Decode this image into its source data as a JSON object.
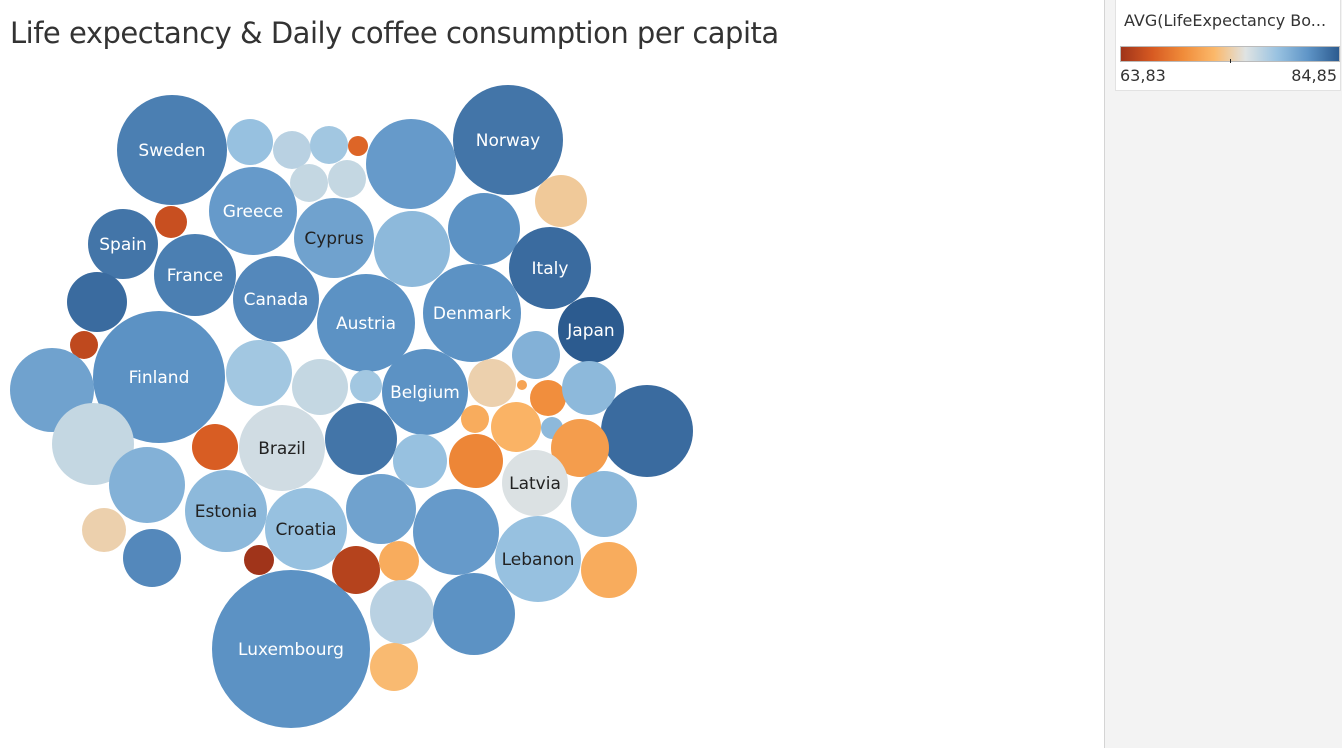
{
  "title": "Life expectancy & Daily coffee consumption per capita",
  "legend": {
    "title": "AVG(LifeExpectancy Bo...",
    "min_label": "63,83",
    "max_label": "84,85",
    "min": 63.83,
    "max": 84.85,
    "colors": [
      "#a0341a",
      "#d75a22",
      "#f08c3a",
      "#fbb86a",
      "#dfe3e3",
      "#9ac3e1",
      "#5f95c7",
      "#2c5b8f"
    ]
  },
  "chart_data": {
    "type": "packed-bubble",
    "title": "Life expectancy & Daily coffee consumption per capita",
    "color_measure": "AVG(LifeExpectancy Bo...)",
    "size_measure": "Daily coffee consumption per capita",
    "color_range": [
      63.83,
      84.85
    ],
    "points": [
      {
        "label": "Sweden",
        "size": 3025,
        "life_expectancy": 83.0
      },
      {
        "label": "",
        "size": 529,
        "life_expectancy": 79.0
      },
      {
        "label": "",
        "size": 361,
        "life_expectancy": 77.5
      },
      {
        "label": "",
        "size": 361,
        "life_expectancy": 78.5
      },
      {
        "label": "",
        "size": 100,
        "life_expectancy": 67.5
      },
      {
        "label": "",
        "size": 361,
        "life_expectancy": 77.0
      },
      {
        "label": "",
        "size": 361,
        "life_expectancy": 77.0
      },
      {
        "label": "",
        "size": 2025,
        "life_expectancy": 81.5
      },
      {
        "label": "Norway",
        "size": 3025,
        "life_expectancy": 83.5
      },
      {
        "label": "",
        "size": 676,
        "life_expectancy": 74.0
      },
      {
        "label": "Greece",
        "size": 1936,
        "life_expectancy": 81.5
      },
      {
        "label": "Cyprus",
        "size": 1600,
        "life_expectancy": 81.0
      },
      {
        "label": "",
        "size": 1444,
        "life_expectancy": 79.5
      },
      {
        "label": "",
        "size": 1296,
        "life_expectancy": 82.0
      },
      {
        "label": "",
        "size": 256,
        "life_expectancy": 66.0
      },
      {
        "label": "Spain",
        "size": 1225,
        "life_expectancy": 83.5
      },
      {
        "label": "France",
        "size": 1681,
        "life_expectancy": 83.0
      },
      {
        "label": "Italy",
        "size": 1681,
        "life_expectancy": 84.0
      },
      {
        "label": "Canada",
        "size": 1849,
        "life_expectancy": 82.5
      },
      {
        "label": "",
        "size": 900,
        "life_expectancy": 84.0
      },
      {
        "label": "Austria",
        "size": 2401,
        "life_expectancy": 82.0
      },
      {
        "label": "Denmark",
        "size": 2401,
        "life_expectancy": 82.0
      },
      {
        "label": "Japan",
        "size": 1089,
        "life_expectancy": 84.85
      },
      {
        "label": "",
        "size": 196,
        "life_expectancy": 65.5
      },
      {
        "label": "Finland",
        "size": 4356,
        "life_expectancy": 82.0
      },
      {
        "label": "",
        "size": 1764,
        "life_expectancy": 81.0
      },
      {
        "label": "",
        "size": 1089,
        "life_expectancy": 78.5
      },
      {
        "label": "",
        "size": 784,
        "life_expectancy": 77.0
      },
      {
        "label": "",
        "size": 256,
        "life_expectancy": 78.5
      },
      {
        "label": "Belgium",
        "size": 1849,
        "life_expectancy": 82.0
      },
      {
        "label": "",
        "size": 576,
        "life_expectancy": 74.5
      },
      {
        "label": "",
        "size": 25,
        "life_expectancy": 71.5
      },
      {
        "label": "",
        "size": 324,
        "life_expectancy": 70.0
      },
      {
        "label": "",
        "size": 576,
        "life_expectancy": 80.0
      },
      {
        "label": "",
        "size": 2116,
        "life_expectancy": 84.0
      },
      {
        "label": "",
        "size": 729,
        "life_expectancy": 79.5
      },
      {
        "label": "",
        "size": 1681,
        "life_expectancy": 77.0
      },
      {
        "label": "",
        "size": 529,
        "life_expectancy": 67.0
      },
      {
        "label": "Brazil",
        "size": 1849,
        "life_expectancy": 76.5
      },
      {
        "label": "",
        "size": 1296,
        "life_expectancy": 83.5
      },
      {
        "label": "",
        "size": 196,
        "life_expectancy": 72.0
      },
      {
        "label": "",
        "size": 625,
        "life_expectancy": 72.5
      },
      {
        "label": "",
        "size": 121,
        "life_expectancy": 79.5
      },
      {
        "label": "",
        "size": 729,
        "life_expectancy": 69.5
      },
      {
        "label": "Estonia",
        "size": 1681,
        "life_expectancy": 79.5
      },
      {
        "label": "",
        "size": 729,
        "life_expectancy": 79.0
      },
      {
        "label": "",
        "size": 841,
        "life_expectancy": 71.0
      },
      {
        "label": "Latvia",
        "size": 1089,
        "life_expectancy": 76.0
      },
      {
        "label": "",
        "size": 1444,
        "life_expectancy": 80.0
      },
      {
        "label": "",
        "size": 484,
        "life_expectancy": 74.5
      },
      {
        "label": "Croatia",
        "size": 1681,
        "life_expectancy": 79.0
      },
      {
        "label": "",
        "size": 1225,
        "life_expectancy": 81.0
      },
      {
        "label": "",
        "size": 1849,
        "life_expectancy": 81.5
      },
      {
        "label": "Lebanon",
        "size": 1849,
        "life_expectancy": 79.0
      },
      {
        "label": "",
        "size": 1089,
        "life_expectancy": 79.5
      },
      {
        "label": "",
        "size": 225,
        "life_expectancy": 63.83
      },
      {
        "label": "",
        "size": 841,
        "life_expectancy": 82.5
      },
      {
        "label": "",
        "size": 576,
        "life_expectancy": 65.0
      },
      {
        "label": "",
        "size": 400,
        "life_expectancy": 72.0
      },
      {
        "label": "",
        "size": 784,
        "life_expectancy": 72.0
      },
      {
        "label": "Luxembourg",
        "size": 6241,
        "life_expectancy": 82.0
      },
      {
        "label": "",
        "size": 1024,
        "life_expectancy": 77.5
      },
      {
        "label": "",
        "size": 1681,
        "life_expectancy": 82.0
      },
      {
        "label": "",
        "size": 576,
        "life_expectancy": 73.0
      }
    ]
  }
}
